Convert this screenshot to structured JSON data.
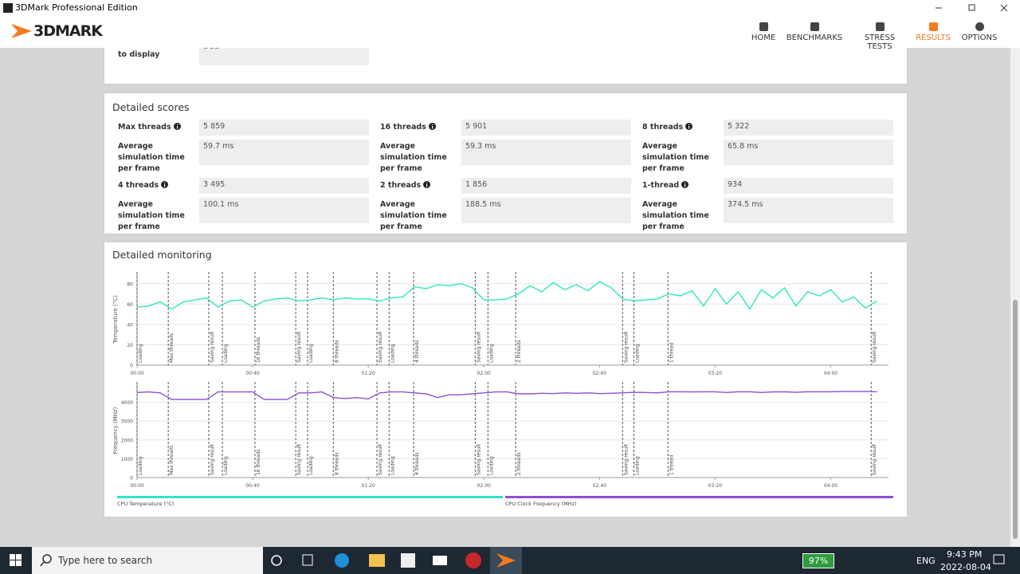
{
  "window": {
    "title": "3DMark Professional Edition"
  },
  "app": {
    "logo": "3DMARK",
    "nav": [
      {
        "label": "HOME"
      },
      {
        "label": "BENCHMARKS"
      },
      {
        "label": "STRESS TESTS"
      },
      {
        "label": "RESULTS"
      },
      {
        "label": "OPTIONS"
      }
    ],
    "active": 3
  },
  "top_panel": {
    "label": "GPU connected to display",
    "value": "true"
  },
  "detailed_scores": {
    "title": "Detailed scores",
    "items": [
      {
        "label": "Max threads",
        "value": "5 859",
        "sub_label": "Average simulation time per frame",
        "sub_value": "59.7 ms"
      },
      {
        "label": "16 threads",
        "value": "5 901",
        "sub_label": "Average simulation time per frame",
        "sub_value": "59.3 ms"
      },
      {
        "label": "8 threads",
        "value": "5 322",
        "sub_label": "Average simulation time per frame",
        "sub_value": "65.8 ms"
      },
      {
        "label": "4 threads",
        "value": "3 495",
        "sub_label": "Average simulation time per frame",
        "sub_value": "100.1 ms"
      },
      {
        "label": "2 threads",
        "value": "1 856",
        "sub_label": "Average simulation time per frame",
        "sub_value": "188.5 ms"
      },
      {
        "label": "1-thread",
        "value": "934",
        "sub_label": "Average simulation time per frame",
        "sub_value": "374.5 ms"
      }
    ]
  },
  "detailed_monitoring": {
    "title": "Detailed monitoring"
  },
  "chart_data": [
    {
      "type": "line",
      "y_label": "Temperature (°C)",
      "xlim": [
        0,
        260
      ],
      "ylim": [
        0,
        90
      ],
      "yticks": [
        0,
        20,
        40,
        60,
        80
      ],
      "grid": true,
      "xticks": [
        {
          "value": 0,
          "label": "00:00"
        },
        {
          "value": 40,
          "label": "00:40"
        },
        {
          "value": 80,
          "label": "01:20"
        },
        {
          "value": 120,
          "label": "02:00"
        },
        {
          "value": 160,
          "label": "02:40"
        },
        {
          "value": 200,
          "label": "03:20"
        },
        {
          "value": 240,
          "label": "04:00"
        }
      ],
      "events": [
        {
          "x": 0,
          "label": "Loading"
        },
        {
          "x": 10.8,
          "label": "Max threads"
        },
        {
          "x": 24.8,
          "label": "Saving result"
        },
        {
          "x": 29.5,
          "label": "Loading"
        },
        {
          "x": 40.8,
          "label": "16 threads"
        },
        {
          "x": 54.9,
          "label": "Saving result"
        },
        {
          "x": 59,
          "label": "Loading"
        },
        {
          "x": 67.9,
          "label": "8 threads"
        },
        {
          "x": 83,
          "label": "Saving result"
        },
        {
          "x": 87.2,
          "label": "Loading"
        },
        {
          "x": 95.7,
          "label": "4 threads"
        },
        {
          "x": 117,
          "label": "Saving result"
        },
        {
          "x": 121.4,
          "label": "Loading"
        },
        {
          "x": 131,
          "label": "2 threads"
        },
        {
          "x": 168,
          "label": "Saving result"
        },
        {
          "x": 171.9,
          "label": "Loading"
        },
        {
          "x": 183.7,
          "label": "1 thread"
        },
        {
          "x": 254,
          "label": "Saving result"
        }
      ],
      "x": [
        0,
        4,
        8,
        12,
        16,
        20,
        24,
        28,
        32,
        36,
        40,
        44,
        48,
        52,
        56,
        60,
        64,
        68,
        72,
        76,
        80,
        84,
        88,
        92,
        96,
        100,
        104,
        108,
        112,
        116,
        120,
        124,
        128,
        132,
        136,
        140,
        144,
        148,
        152,
        156,
        160,
        164,
        168,
        172,
        176,
        180,
        184,
        188,
        192,
        196,
        200,
        204,
        208,
        212,
        216,
        220,
        224,
        228,
        232,
        236,
        240,
        244,
        248,
        252,
        256
      ],
      "series": [
        {
          "name": "CPU Temperature (°C)",
          "color": "#2ee6c0",
          "values": [
            57,
            58,
            62,
            55,
            62,
            64,
            66,
            57,
            63,
            64,
            57,
            63,
            65,
            66,
            63,
            64,
            66,
            64,
            66,
            65,
            65,
            63,
            66,
            67,
            77,
            75,
            79,
            78,
            80,
            76,
            64,
            64,
            65,
            70,
            78,
            72,
            81,
            74,
            79,
            73,
            82,
            76,
            65,
            63,
            64,
            65,
            70,
            68,
            73,
            58,
            75,
            60,
            72,
            55,
            74,
            66,
            76,
            58,
            72,
            68,
            74,
            62,
            67,
            56,
            63
          ]
        }
      ]
    },
    {
      "type": "line",
      "y_label": "Frequency (MHz)",
      "xlim": [
        0,
        260
      ],
      "ylim": [
        0,
        5000
      ],
      "yticks": [
        0,
        1000,
        2000,
        3000,
        4000
      ],
      "grid": true,
      "xticks": [
        {
          "value": 0,
          "label": "00:00"
        },
        {
          "value": 40,
          "label": "00:40"
        },
        {
          "value": 80,
          "label": "01:20"
        },
        {
          "value": 120,
          "label": "02:00"
        },
        {
          "value": 160,
          "label": "02:40"
        },
        {
          "value": 200,
          "label": "03:20"
        },
        {
          "value": 240,
          "label": "04:00"
        }
      ],
      "events": [
        {
          "x": 0,
          "label": "Loading"
        },
        {
          "x": 10.8,
          "label": "Max threads"
        },
        {
          "x": 24.8,
          "label": "Saving result"
        },
        {
          "x": 29.5,
          "label": "Loading"
        },
        {
          "x": 40.8,
          "label": "16 threads"
        },
        {
          "x": 54.9,
          "label": "Saving result"
        },
        {
          "x": 59,
          "label": "Loading"
        },
        {
          "x": 67.9,
          "label": "8 threads"
        },
        {
          "x": 83,
          "label": "Saving result"
        },
        {
          "x": 87.2,
          "label": "Loading"
        },
        {
          "x": 95.7,
          "label": "4 threads"
        },
        {
          "x": 117,
          "label": "Saving result"
        },
        {
          "x": 121.4,
          "label": "Loading"
        },
        {
          "x": 131,
          "label": "2 threads"
        },
        {
          "x": 168,
          "label": "Saving result"
        },
        {
          "x": 171.9,
          "label": "Loading"
        },
        {
          "x": 183.7,
          "label": "1 thread"
        },
        {
          "x": 254,
          "label": "Saving result"
        }
      ],
      "x": [
        0,
        4,
        8,
        12,
        16,
        20,
        24,
        28,
        32,
        36,
        40,
        44,
        48,
        52,
        56,
        60,
        64,
        68,
        72,
        76,
        80,
        84,
        88,
        92,
        96,
        100,
        104,
        108,
        112,
        116,
        120,
        124,
        128,
        132,
        136,
        140,
        144,
        148,
        152,
        156,
        160,
        164,
        168,
        172,
        176,
        180,
        184,
        188,
        192,
        196,
        200,
        204,
        208,
        212,
        216,
        220,
        224,
        228,
        232,
        236,
        240,
        244,
        248,
        252,
        256
      ],
      "series": [
        {
          "name": "CPU Clock Frequency (MHz)",
          "color": "#8e4fd0",
          "values": [
            4520,
            4550,
            4500,
            4150,
            4150,
            4150,
            4150,
            4550,
            4550,
            4550,
            4550,
            4150,
            4150,
            4150,
            4500,
            4500,
            4550,
            4250,
            4200,
            4250,
            4180,
            4500,
            4550,
            4550,
            4500,
            4450,
            4250,
            4400,
            4400,
            4450,
            4500,
            4550,
            4550,
            4450,
            4450,
            4480,
            4460,
            4500,
            4480,
            4500,
            4460,
            4480,
            4500,
            4530,
            4520,
            4500,
            4560,
            4560,
            4550,
            4560,
            4560,
            4520,
            4560,
            4560,
            4520,
            4550,
            4560,
            4530,
            4560,
            4560,
            4560,
            4570,
            4570,
            4570,
            4560
          ]
        }
      ]
    }
  ],
  "taskbar": {
    "search": "Type here to search",
    "battery": "97%",
    "language": "ENG",
    "time": "9:43 PM",
    "date": "2022-08-04"
  }
}
